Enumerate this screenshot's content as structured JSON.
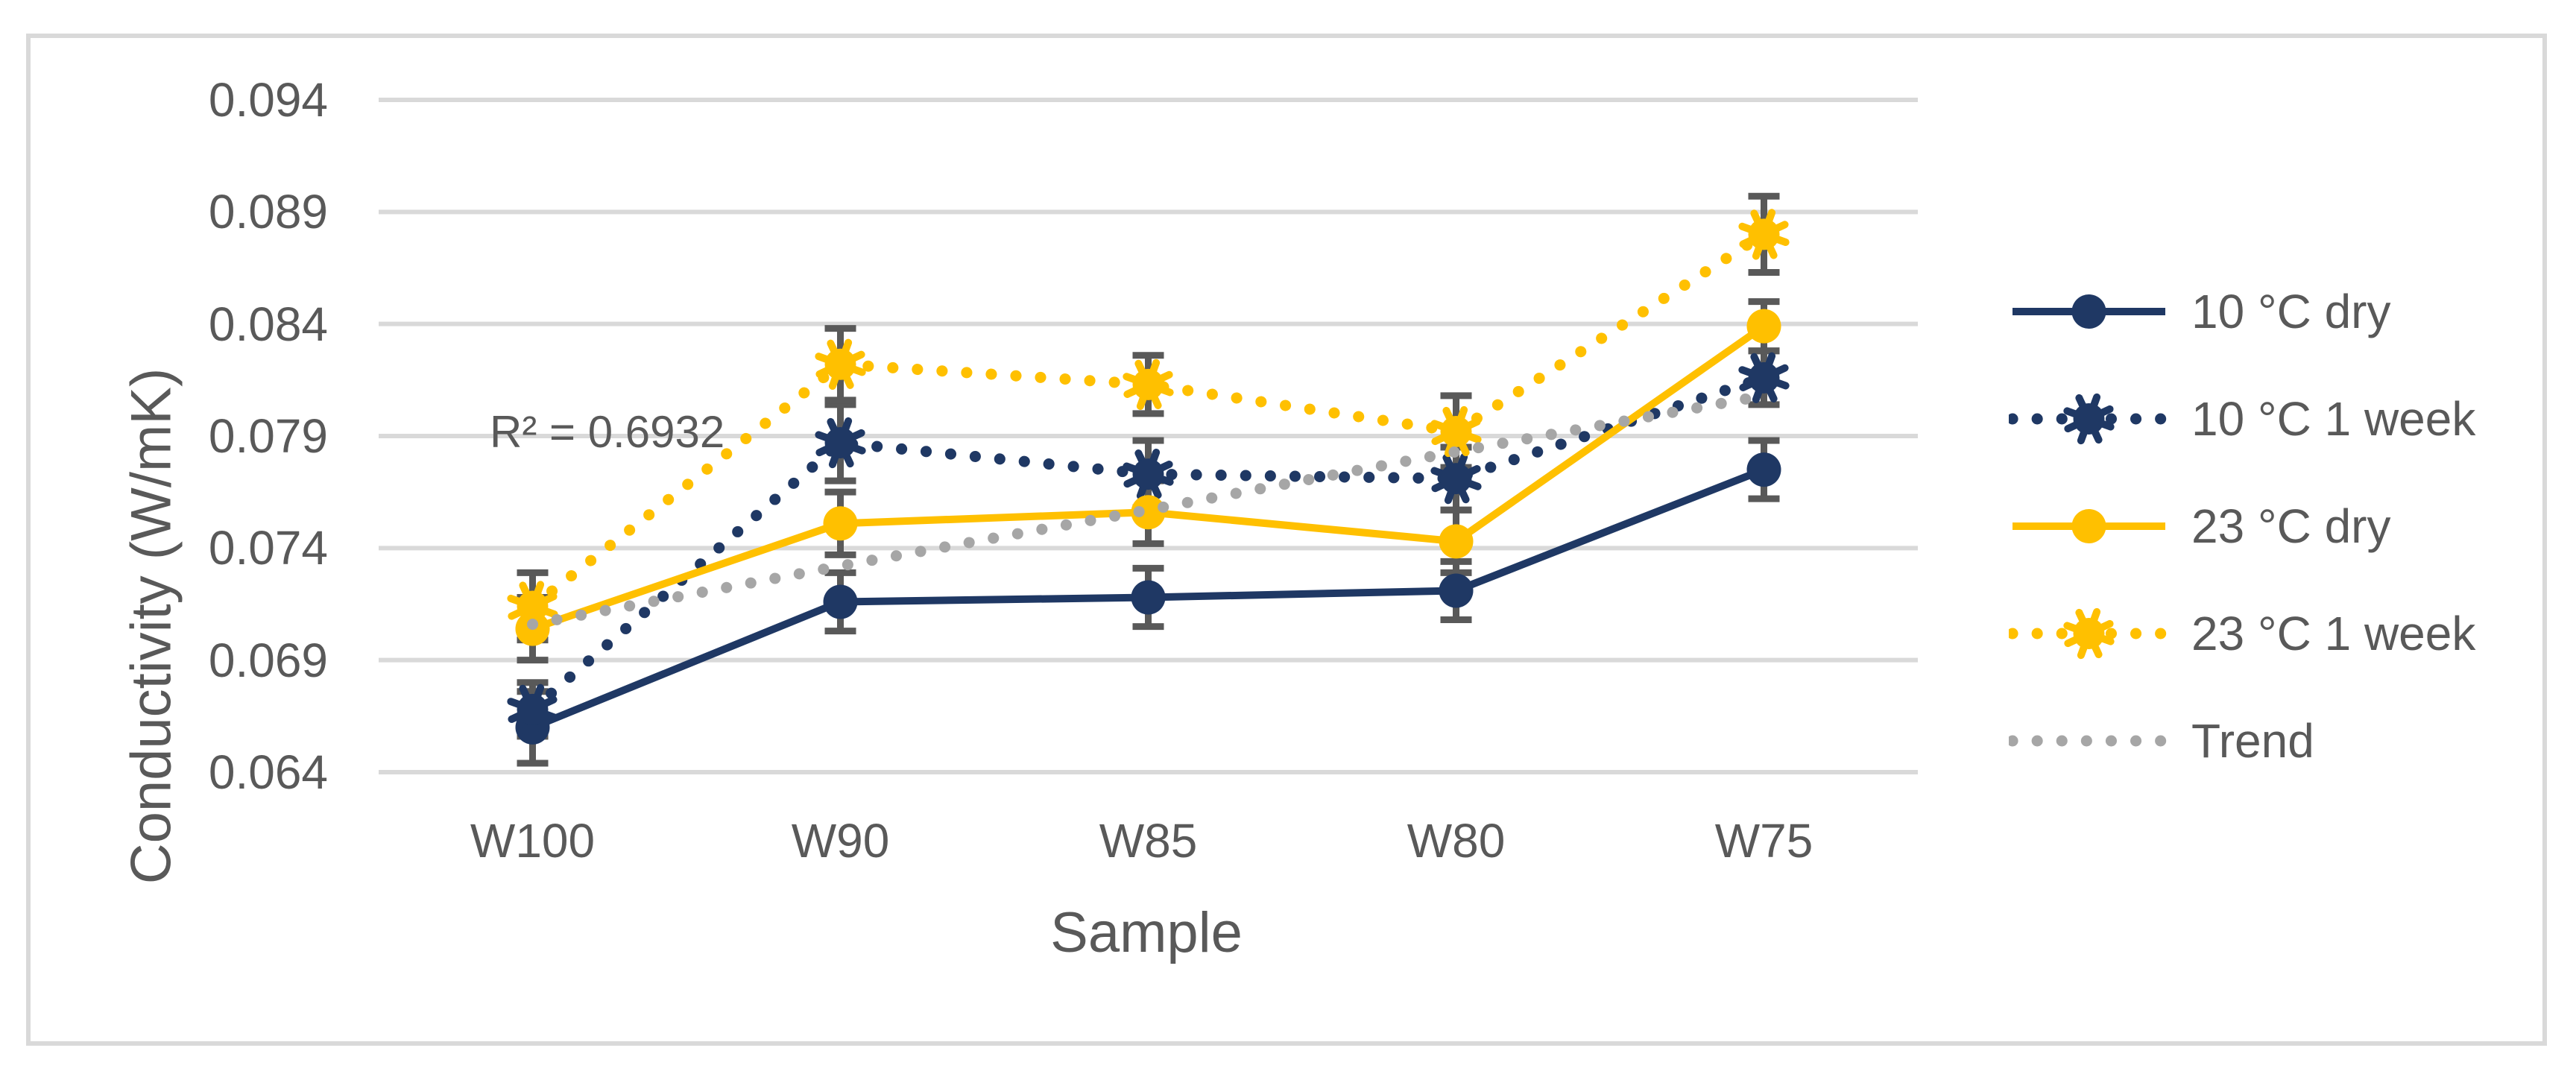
{
  "figure": {
    "background": "#FFFFFF",
    "border_color": "#D9D9D9"
  },
  "chart_data": {
    "type": "line",
    "title": "",
    "xlabel": "Sample",
    "ylabel": "Conductivity (W/mK)",
    "annotation": "R² = 0.6932",
    "categories": [
      "W100",
      "W90",
      "W85",
      "W80",
      "W75"
    ],
    "y_ticks": [
      0.094,
      0.089,
      0.084,
      0.079,
      0.074,
      0.069,
      0.064
    ],
    "y_tick_labels": [
      "0.094",
      "0.089",
      "0.084",
      "0.079",
      "0.074",
      "0.069",
      "0.064"
    ],
    "ylim": [
      0.064,
      0.094
    ],
    "grid": true,
    "legend_position": "right",
    "series": [
      {
        "name": "10 °C dry",
        "color": "#1F3864",
        "line_style": "solid",
        "marker": "circle",
        "values": [
          0.066,
          0.0716,
          0.0718,
          0.0721,
          0.0775
        ],
        "errors": [
          0.0016,
          0.0013,
          0.0013,
          0.0013,
          0.0013
        ]
      },
      {
        "name": "10 °C 1 week",
        "color": "#1F3864",
        "line_style": "dotted",
        "marker": "star",
        "values": [
          0.0668,
          0.0787,
          0.0773,
          0.0771,
          0.0816
        ],
        "errors": [
          0.0012,
          0.0017,
          0.0015,
          0.0014,
          0.0012
        ]
      },
      {
        "name": "23 °C dry",
        "color": "#FFC000",
        "line_style": "solid",
        "marker": "circle",
        "values": [
          0.0704,
          0.0751,
          0.0756,
          0.0743,
          0.0839
        ],
        "errors": [
          0.0014,
          0.0014,
          0.0014,
          0.0014,
          0.0011
        ]
      },
      {
        "name": "23 °C 1 week",
        "color": "#FFC000",
        "line_style": "dotted",
        "marker": "star",
        "values": [
          0.0714,
          0.0822,
          0.0813,
          0.0792,
          0.088
        ],
        "errors": [
          0.0015,
          0.0016,
          0.0013,
          0.0016,
          0.0017
        ]
      },
      {
        "name": "Trend",
        "color": "#A6A6A6",
        "line_style": "dotted",
        "marker": "none",
        "values": [
          0.0706,
          0.0732,
          0.0757,
          0.0783,
          0.0808
        ],
        "errors": null
      }
    ],
    "colors": {
      "text": "#595959",
      "gridline": "#D9D9D9",
      "error_bar": "#595959"
    }
  }
}
